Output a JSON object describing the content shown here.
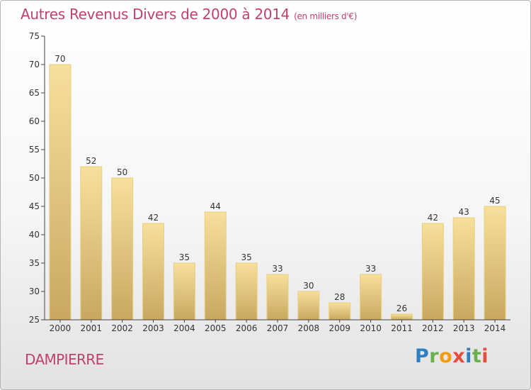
{
  "chart_data": {
    "type": "bar",
    "title": "Autres Revenus Divers de 2000 à 2014",
    "subtitle": "(en milliers d'€)",
    "categories": [
      "2000",
      "2001",
      "2002",
      "2003",
      "2004",
      "2005",
      "2006",
      "2007",
      "2008",
      "2009",
      "2010",
      "2011",
      "2012",
      "2013",
      "2014"
    ],
    "values": [
      70,
      52,
      50,
      42,
      35,
      44,
      35,
      33,
      30,
      28,
      33,
      26,
      42,
      43,
      45
    ],
    "ylim": [
      25,
      75
    ],
    "yticks": [
      25,
      30,
      35,
      40,
      45,
      50,
      55,
      60,
      65,
      70,
      75
    ],
    "grid": false,
    "colors": {
      "bar_top": "#f7e09c",
      "bar_bottom": "#c8a860",
      "bar_edge": "#e8cf80"
    }
  },
  "footer": {
    "location": "DAMPIERRE",
    "brand": [
      "P",
      "r",
      "o",
      "x",
      "i",
      "t",
      "i"
    ]
  }
}
